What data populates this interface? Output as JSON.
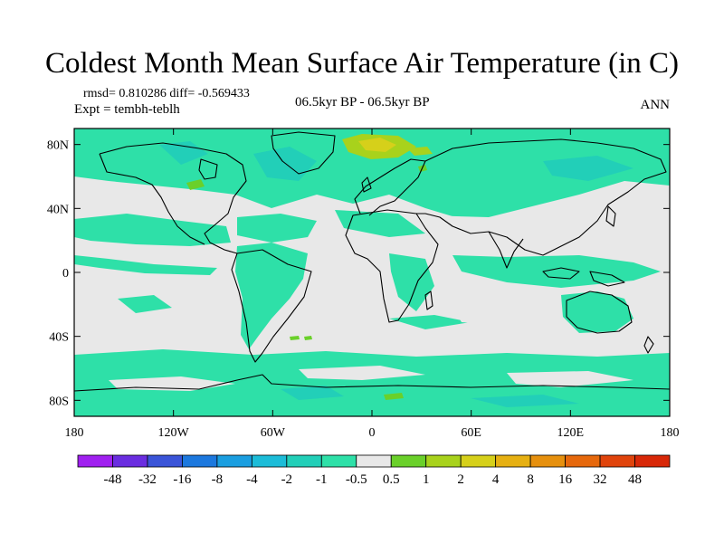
{
  "title": "Coldest Month Mean Surface Air Temperature (in C)",
  "stats": "rmsd= 0.810286 diff= -0.569433",
  "experiment": "Expt = tembh-teblh",
  "period": "06.5kyr BP - 06.5kyr BP",
  "season": "ANN",
  "map": {
    "lat_labels": [
      "80N",
      "40N",
      "0",
      "40S",
      "80S"
    ],
    "lat_values": [
      80,
      40,
      0,
      -40,
      -80
    ],
    "lon_labels": [
      "180",
      "120W",
      "60W",
      "0",
      "60E",
      "120E",
      "180"
    ],
    "lon_values": [
      -180,
      -120,
      -60,
      0,
      60,
      120,
      180
    ]
  },
  "colorbar": {
    "labels": [
      "-48",
      "-32",
      "-16",
      "-8",
      "-4",
      "-2",
      "-1",
      "-0.5",
      "0.5",
      "1",
      "2",
      "4",
      "8",
      "16",
      "32",
      "48"
    ],
    "colors": [
      "#a020f0",
      "#6a2de0",
      "#3a54d8",
      "#1c78de",
      "#1a9ee0",
      "#1cbcd8",
      "#22cfb8",
      "#2ee0a8",
      "#e8e8e8",
      "#6ad02a",
      "#a8d21c",
      "#d6d01a",
      "#e6b012",
      "#e6900e",
      "#e6680c",
      "#e0440c",
      "#d82808"
    ]
  }
}
